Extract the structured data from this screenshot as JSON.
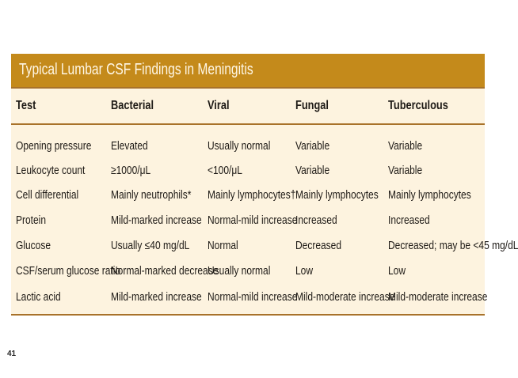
{
  "title": "Typical Lumbar CSF Findings in Meningitis",
  "columns": [
    "Test",
    "Bacterial",
    "Viral",
    "Fungal",
    "Tuberculous"
  ],
  "rows": [
    [
      "Opening pressure",
      "Elevated",
      "Usually normal",
      "Variable",
      "Variable"
    ],
    [
      "Leukocyte count",
      "≥1000/μL",
      "<100/μL",
      "Variable",
      "Variable"
    ],
    [
      "Cell differential",
      "Mainly neutrophils*",
      "Mainly lymphocytes†",
      "Mainly lymphocytes",
      "Mainly lymphocytes"
    ],
    [
      "Protein",
      "Mild-marked increase",
      "Normal-mild increase",
      "Increased",
      "Increased"
    ],
    [
      "Glucose",
      "Usually ≤40 mg/dL",
      "Normal",
      "Decreased",
      "Decreased; may be <45 mg/dL"
    ],
    [
      "CSF/serum glucose ratio",
      "Normal-marked decrease",
      "Usually normal",
      "Low",
      "Low"
    ],
    [
      "Lactic acid",
      "Mild-marked increase",
      "Normal-mild increase",
      "Mild-moderate increase",
      "Mild-moderate increase"
    ]
  ],
  "page_number": "41",
  "colors": {
    "title_bar": "#c48a1b",
    "table_background": "#fdf3df",
    "rule": "#a8722a"
  }
}
